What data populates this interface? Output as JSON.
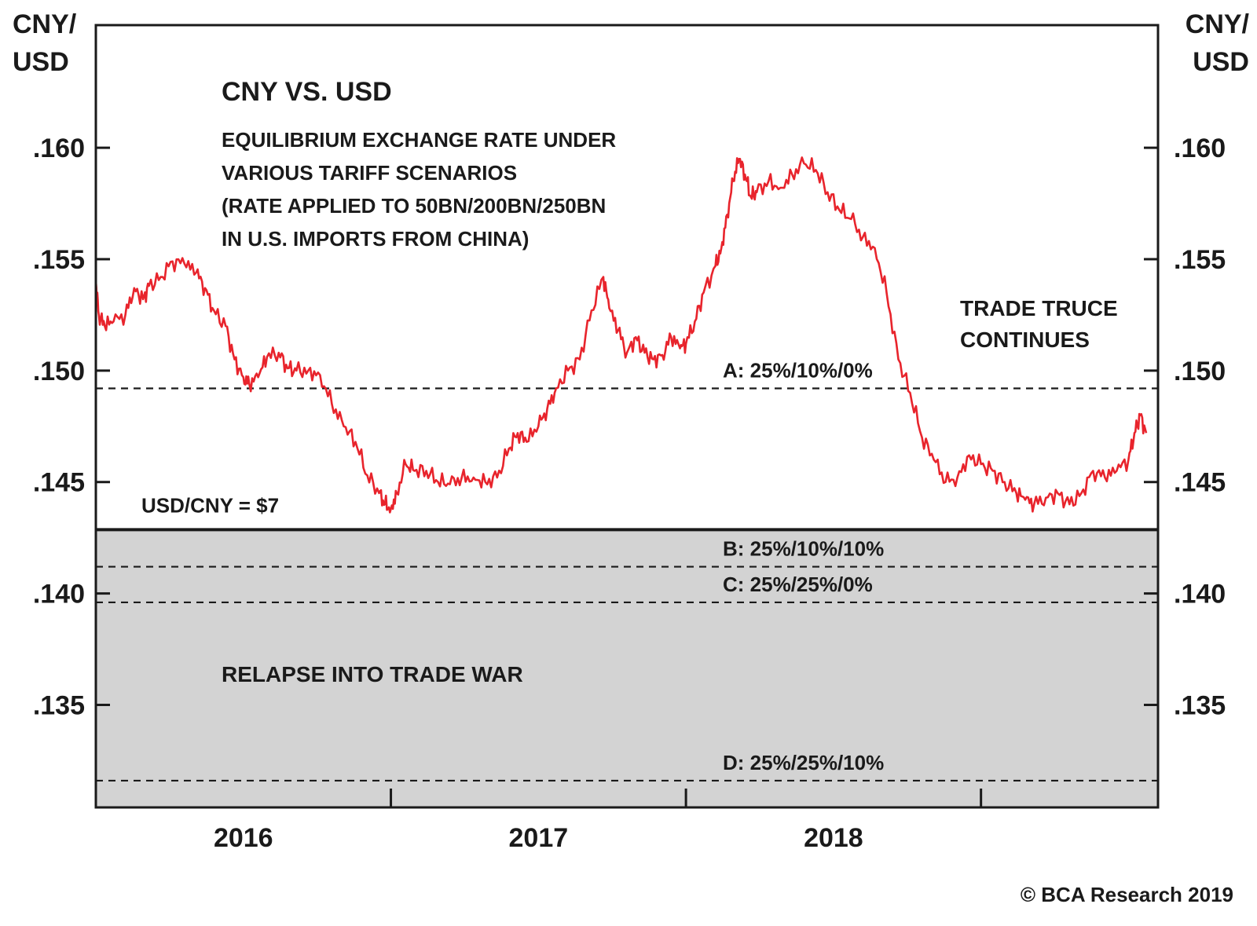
{
  "chart_data": {
    "type": "line",
    "title": "CNY VS. USD",
    "subtitle": [
      "EQUILIBRIUM EXCHANGE RATE UNDER",
      "VARIOUS TARIFF SCENARIOS",
      "(RATE APPLIED TO 50BN/200BN/250BN",
      "IN U.S. IMPORTS FROM CHINA)"
    ],
    "ylabel_left": [
      "CNY/",
      "USD"
    ],
    "ylabel_right": [
      "CNY/",
      "USD"
    ],
    "ylim": [
      0.1304,
      0.1655
    ],
    "xlim": [
      2015.5,
      2019.1
    ],
    "y_ticks": [
      0.16,
      0.155,
      0.15,
      0.145,
      0.14,
      0.135
    ],
    "y_tick_labels": [
      ".160",
      ".155",
      ".150",
      ".145",
      ".140",
      ".135"
    ],
    "x_ticks": [
      2016.0,
      2017.0,
      2018.0
    ],
    "x_tick_marks": [
      2016.5,
      2017.5,
      2018.5
    ],
    "x_tick_labels": [
      "2016",
      "2017",
      "2018"
    ],
    "grid": false,
    "series": [
      {
        "color": "#e8242c",
        "x": [
          2015.5,
          2015.51,
          2015.53,
          2015.56,
          2015.6,
          2015.63,
          2015.66,
          2015.68,
          2015.72,
          2015.76,
          2015.8,
          2015.84,
          2015.87,
          2015.9,
          2015.94,
          2015.97,
          2016.0,
          2016.02,
          2016.05,
          2016.08,
          2016.12,
          2016.15,
          2016.18,
          2016.22,
          2016.26,
          2016.3,
          2016.34,
          2016.38,
          2016.42,
          2016.46,
          2016.48,
          2016.5,
          2016.52,
          2016.55,
          2016.58,
          2016.62,
          2016.66,
          2016.7,
          2016.74,
          2016.78,
          2016.82,
          2016.86,
          2016.9,
          2016.93,
          2016.96,
          2017.0,
          2017.03,
          2017.06,
          2017.1,
          2017.14,
          2017.18,
          2017.22,
          2017.24,
          2017.27,
          2017.3,
          2017.33,
          2017.36,
          2017.39,
          2017.42,
          2017.45,
          2017.48,
          2017.5,
          2017.53,
          2017.56,
          2017.6,
          2017.62,
          2017.64,
          2017.66,
          2017.68,
          2017.7,
          2017.72,
          2017.74,
          2017.78,
          2017.82,
          2017.86,
          2017.9,
          2017.94,
          2017.98,
          2018.02,
          2018.06,
          2018.1,
          2018.14,
          2018.18,
          2018.22,
          2018.26,
          2018.3,
          2018.34,
          2018.38,
          2018.42,
          2018.46,
          2018.5,
          2018.54,
          2018.58,
          2018.62,
          2018.65,
          2018.68,
          2018.72,
          2018.76,
          2018.8,
          2018.84,
          2018.88,
          2018.92,
          2018.96,
          2019.0,
          2019.02,
          2019.04,
          2019.06
        ],
        "values": [
          0.154,
          0.1525,
          0.152,
          0.1522,
          0.1525,
          0.1537,
          0.1532,
          0.1538,
          0.1542,
          0.1549,
          0.1548,
          0.1544,
          0.1537,
          0.1527,
          0.152,
          0.1505,
          0.1497,
          0.1494,
          0.1497,
          0.1506,
          0.1508,
          0.1501,
          0.15,
          0.15,
          0.1498,
          0.1485,
          0.1475,
          0.1468,
          0.1453,
          0.1445,
          0.144,
          0.1438,
          0.1445,
          0.1458,
          0.1455,
          0.1455,
          0.145,
          0.1449,
          0.1452,
          0.1452,
          0.145,
          0.1452,
          0.1465,
          0.1472,
          0.1468,
          0.1475,
          0.1483,
          0.1492,
          0.15,
          0.1505,
          0.1527,
          0.1542,
          0.1528,
          0.1518,
          0.1508,
          0.1515,
          0.1508,
          0.1505,
          0.1507,
          0.1515,
          0.151,
          0.1512,
          0.1522,
          0.1535,
          0.1547,
          0.1555,
          0.157,
          0.1585,
          0.1595,
          0.1588,
          0.1578,
          0.158,
          0.1585,
          0.1582,
          0.1588,
          0.1593,
          0.159,
          0.158,
          0.1572,
          0.1568,
          0.156,
          0.1555,
          0.1535,
          0.1505,
          0.149,
          0.147,
          0.146,
          0.145,
          0.1452,
          0.1462,
          0.1458,
          0.1455,
          0.145,
          0.1445,
          0.1442,
          0.144,
          0.1443,
          0.1445,
          0.144,
          0.1445,
          0.1455,
          0.1452,
          0.1455,
          0.146,
          0.1472,
          0.148,
          0.1472
        ]
      }
    ],
    "reference_lines": [
      {
        "label": "A: 25%/10%/0%",
        "y": 0.1492,
        "style": "dashed"
      },
      {
        "label": "USD/CNY = $7",
        "y": 0.14286,
        "style": "solid"
      },
      {
        "label": "B: 25%/10%/10%",
        "y": 0.1412,
        "style": "dashed"
      },
      {
        "label": "C: 25%/25%/0%",
        "y": 0.1396,
        "style": "dashed"
      },
      {
        "label": "D: 25%/25%/10%",
        "y": 0.1316,
        "style": "dashed"
      }
    ],
    "shaded_zone": {
      "label": "RELAPSE INTO TRADE WAR",
      "y_from": 0.1304,
      "y_to": 0.14286,
      "color": "#d3d3d3"
    },
    "annotations": {
      "trade_truce": [
        "TRADE TRUCE",
        "CONTINUES"
      ]
    },
    "credit": "© BCA Research 2019"
  }
}
